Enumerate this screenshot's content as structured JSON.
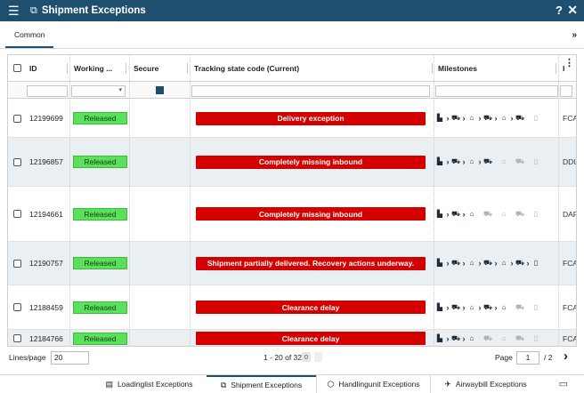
{
  "titlebar": {
    "menu_icon": "hamburger-icon",
    "app_icon": "network-icon",
    "title": "Shipment Exceptions",
    "help": "?",
    "close": "✕"
  },
  "tabs": {
    "common": "Common",
    "expand": "»"
  },
  "columns": {
    "id": "ID",
    "working": "Working ...",
    "secure": "Secure",
    "state": "Tracking state code (Current)",
    "milestones": "Milestones",
    "inco": "I"
  },
  "rows": [
    {
      "id": "12199699",
      "working": "Released",
      "state": "Delivery exception",
      "inco": "FCA",
      "ms": [
        1,
        1,
        1,
        1,
        1,
        1,
        0
      ]
    },
    {
      "id": "12196857",
      "working": "Released",
      "state": "Completely missing inbound",
      "inco": "DDU",
      "ms": [
        1,
        1,
        1,
        1,
        0,
        0,
        0
      ]
    },
    {
      "id": "12194661",
      "working": "Released",
      "state": "Completely missing inbound",
      "inco": "DAP",
      "ms": [
        1,
        1,
        1,
        0,
        0,
        0,
        0
      ]
    },
    {
      "id": "12190757",
      "working": "Released",
      "state": "Shipment partially delivered. Recovery actions underway.",
      "inco": "FCA",
      "ms": [
        1,
        1,
        1,
        1,
        1,
        1,
        1
      ]
    },
    {
      "id": "12188459",
      "working": "Released",
      "state": "Clearance delay",
      "inco": "FCA",
      "ms": [
        1,
        1,
        1,
        1,
        1,
        0,
        0
      ]
    },
    {
      "id": "12184766",
      "working": "Released",
      "state": "Clearance delay",
      "inco": "FCA",
      "ms": [
        1,
        1,
        1,
        0,
        0,
        0,
        0
      ]
    }
  ],
  "pager": {
    "lines_label": "Lines/page",
    "lines_value": "20",
    "range": "1 - 20 of 32",
    "badge": "0",
    "page_label": "Page",
    "page_value": "1",
    "page_total": "/ 2",
    "next": "›"
  },
  "bottom_tabs": [
    {
      "label": "Loadinglist Exceptions",
      "icon": "▤"
    },
    {
      "label": "Shipment Exceptions",
      "icon": "⧉"
    },
    {
      "label": "Handlingunit Exceptions",
      "icon": "⬡"
    },
    {
      "label": "Airwaybill Exceptions",
      "icon": "✈"
    }
  ],
  "milestone_glyphs": [
    "▙",
    "⛟",
    "⌂",
    "⛟",
    "⌂",
    "⛟",
    "▯"
  ],
  "colors": {
    "header": "#1f4f6e",
    "released": "#5be05b",
    "state": "#d40000",
    "row_alt": "#e9eff3"
  }
}
